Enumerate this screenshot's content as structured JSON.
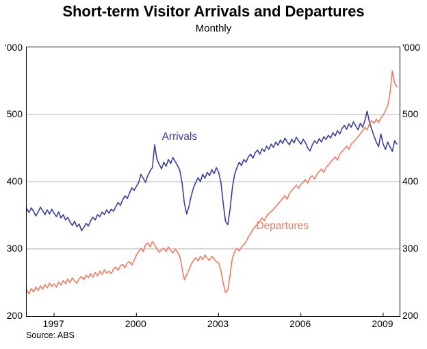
{
  "chart_data": {
    "type": "line",
    "title": "Short-term Visitor Arrivals and Departures",
    "subtitle": "Monthly",
    "unit": "'000",
    "source": "Source: ABS",
    "ylim": [
      200,
      600
    ],
    "yticks": [
      200,
      300,
      400,
      500
    ],
    "x_domain": [
      1996.0,
      2009.6
    ],
    "x_start": 1996.0,
    "points_per_year": 12,
    "xticks": [
      1997,
      2000,
      2003,
      2006,
      2009
    ],
    "grid_color": "#b3b3b3",
    "axis_color": "#000000",
    "legend_position": "inline-annotations",
    "series": [
      {
        "name": "Arrivals",
        "color": "#383d9d",
        "label_x": 2001.6,
        "label_y": 465,
        "values": [
          360,
          354,
          361,
          356,
          349,
          355,
          362,
          357,
          351,
          358,
          352,
          359,
          353,
          348,
          355,
          346,
          351,
          343,
          347,
          340,
          335,
          341,
          333,
          337,
          327,
          332,
          338,
          334,
          342,
          347,
          343,
          351,
          348,
          355,
          351,
          358,
          353,
          359,
          356,
          363,
          369,
          365,
          373,
          379,
          375,
          383,
          391,
          387,
          393,
          399,
          411,
          405,
          399,
          409,
          416,
          421,
          455,
          433,
          426,
          419,
          429,
          423,
          433,
          427,
          436,
          430,
          424,
          417,
          398,
          368,
          352,
          363,
          379,
          391,
          399,
          406,
          400,
          411,
          405,
          414,
          409,
          418,
          412,
          421,
          414,
          399,
          368,
          341,
          336,
          359,
          391,
          411,
          421,
          429,
          424,
          433,
          429,
          437,
          441,
          435,
          443,
          447,
          441,
          449,
          445,
          453,
          448,
          456,
          451,
          459,
          454,
          462,
          457,
          465,
          459,
          455,
          463,
          458,
          466,
          461,
          456,
          463,
          458,
          450,
          446,
          455,
          461,
          457,
          464,
          459,
          467,
          463,
          469,
          465,
          473,
          468,
          476,
          471,
          479,
          484,
          478,
          486,
          481,
          489,
          483,
          477,
          487,
          481,
          491,
          505,
          488,
          478,
          468,
          459,
          452,
          471,
          456,
          448,
          459,
          452,
          445,
          461,
          456
        ]
      },
      {
        "name": "Departures",
        "color": "#f4785f",
        "label_x": 2005.35,
        "label_y": 333,
        "values": [
          239,
          233,
          241,
          236,
          243,
          238,
          245,
          240,
          247,
          242,
          249,
          244,
          248,
          243,
          251,
          246,
          253,
          248,
          255,
          250,
          257,
          252,
          249,
          256,
          259,
          254,
          261,
          257,
          263,
          258,
          265,
          260,
          267,
          262,
          269,
          264,
          267,
          263,
          270,
          273,
          268,
          275,
          277,
          272,
          279,
          281,
          276,
          283,
          291,
          296,
          301,
          296,
          306,
          309,
          303,
          311,
          306,
          300,
          295,
          299,
          301,
          296,
          303,
          298,
          294,
          300,
          295,
          289,
          271,
          254,
          261,
          269,
          277,
          283,
          287,
          282,
          289,
          284,
          291,
          286,
          283,
          289,
          285,
          281,
          279,
          268,
          249,
          235,
          239,
          261,
          286,
          296,
          301,
          297,
          303,
          306,
          311,
          318,
          323,
          329,
          333,
          337,
          341,
          346,
          342,
          349,
          353,
          356,
          359,
          363,
          367,
          371,
          375,
          379,
          374,
          383,
          387,
          391,
          395,
          390,
          396,
          399,
          403,
          398,
          406,
          409,
          404,
          411,
          415,
          419,
          414,
          421,
          425,
          429,
          433,
          437,
          432,
          441,
          445,
          449,
          453,
          448,
          456,
          459,
          463,
          467,
          471,
          476,
          481,
          477,
          486,
          491,
          487,
          493,
          488,
          495,
          499,
          506,
          513,
          532,
          565,
          547,
          541
        ]
      }
    ]
  }
}
